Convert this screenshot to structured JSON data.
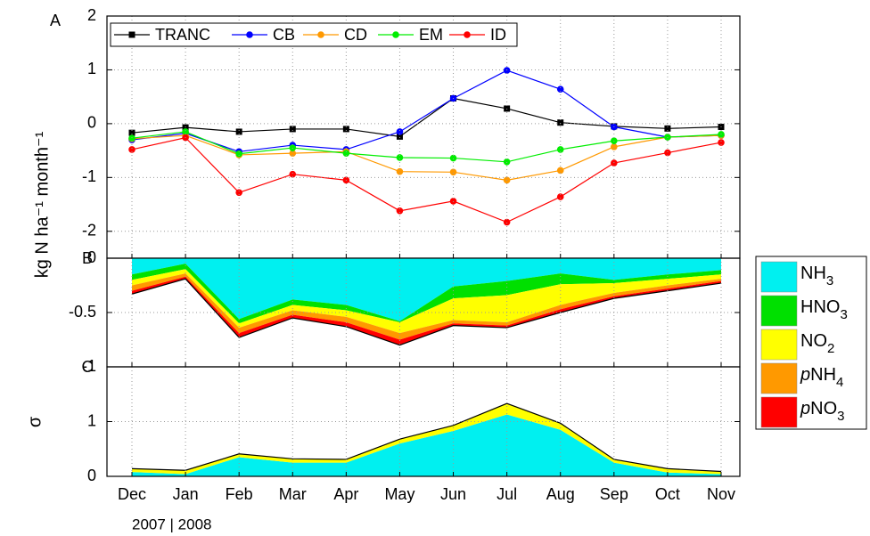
{
  "chart_data": [
    {
      "type": "line",
      "title": "A",
      "ylabel": "kg N ha⁻¹ month⁻¹",
      "ylim": [
        -2.5,
        2
      ],
      "yticks": [
        -2,
        -1,
        0,
        1,
        2
      ],
      "grid": true,
      "legend": "top-left",
      "series": [
        {
          "name": "TRANC",
          "color": "#000000",
          "marker": "square",
          "values": [
            -0.17,
            -0.07,
            -0.15,
            -0.1,
            -0.1,
            -0.24,
            0.47,
            0.28,
            0.02,
            -0.05,
            -0.09,
            -0.06
          ]
        },
        {
          "name": "CB",
          "color": "#0000ff",
          "marker": "circle",
          "values": [
            -0.3,
            -0.18,
            -0.52,
            -0.4,
            -0.48,
            -0.15,
            0.47,
            0.99,
            0.64,
            -0.06,
            -0.25,
            -0.22
          ]
        },
        {
          "name": "CD",
          "color": "#ff9900",
          "marker": "circle",
          "values": [
            -0.28,
            -0.22,
            -0.58,
            -0.55,
            -0.52,
            -0.89,
            -0.9,
            -1.05,
            -0.87,
            -0.43,
            -0.25,
            -0.22
          ]
        },
        {
          "name": "EM",
          "color": "#00ee00",
          "marker": "circle",
          "values": [
            -0.27,
            -0.15,
            -0.56,
            -0.45,
            -0.55,
            -0.63,
            -0.64,
            -0.71,
            -0.48,
            -0.32,
            -0.25,
            -0.2
          ]
        },
        {
          "name": "ID",
          "color": "#ff0000",
          "marker": "circle",
          "values": [
            -0.48,
            -0.26,
            -1.28,
            -0.94,
            -1.05,
            -1.62,
            -1.44,
            -1.83,
            -1.36,
            -0.73,
            -0.54,
            -0.35
          ]
        }
      ]
    },
    {
      "type": "stacked-area",
      "title": "B",
      "ylim": [
        -1,
        0
      ],
      "yticks": [
        -1,
        -0.5,
        0
      ],
      "grid": true,
      "legend": "right",
      "series": [
        {
          "name": "NH3",
          "color": "#00f0f0",
          "values": [
            -0.15,
            -0.05,
            -0.56,
            -0.38,
            -0.43,
            -0.58,
            -0.26,
            -0.21,
            -0.14,
            -0.2,
            -0.15,
            -0.11
          ]
        },
        {
          "name": "HNO3",
          "color": "#00e000",
          "values": [
            -0.05,
            -0.05,
            -0.04,
            -0.05,
            -0.05,
            -0.01,
            -0.11,
            -0.13,
            -0.1,
            -0.03,
            -0.04,
            -0.04
          ]
        },
        {
          "name": "NO2",
          "color": "#ffff00",
          "values": [
            -0.05,
            -0.04,
            -0.04,
            -0.05,
            -0.06,
            -0.1,
            -0.2,
            -0.25,
            -0.19,
            -0.09,
            -0.06,
            -0.04
          ]
        },
        {
          "name": "pNH4",
          "color": "#ff9900",
          "values": [
            -0.05,
            -0.03,
            -0.05,
            -0.04,
            -0.05,
            -0.06,
            -0.03,
            -0.03,
            -0.04,
            -0.03,
            -0.03,
            -0.02
          ]
        },
        {
          "name": "pNO3",
          "color": "#ff0000",
          "values": [
            -0.03,
            -0.02,
            -0.04,
            -0.03,
            -0.04,
            -0.05,
            -0.02,
            -0.02,
            -0.03,
            -0.02,
            -0.02,
            -0.02
          ]
        }
      ]
    },
    {
      "type": "stacked-area",
      "title": "C",
      "ylabel": "σ",
      "categories": [
        "Dec",
        "Jan",
        "Feb",
        "Mar",
        "Apr",
        "May",
        "Jun",
        "Jul",
        "Aug",
        "Sep",
        "Oct",
        "Nov"
      ],
      "xlabel": "2007 | 2008",
      "ylim": [
        0,
        2
      ],
      "yticks": [
        0,
        1
      ],
      "grid": true,
      "series": [
        {
          "color": "#00f0f0",
          "values": [
            0.08,
            0.04,
            0.35,
            0.25,
            0.25,
            0.6,
            0.83,
            1.13,
            0.85,
            0.25,
            0.07,
            0.04
          ]
        },
        {
          "color": "#ffff00",
          "values": [
            0.06,
            0.07,
            0.06,
            0.07,
            0.06,
            0.08,
            0.1,
            0.2,
            0.12,
            0.06,
            0.07,
            0.05
          ]
        }
      ]
    }
  ]
}
